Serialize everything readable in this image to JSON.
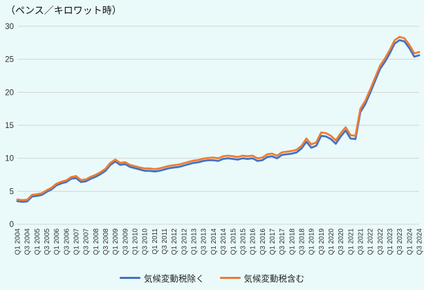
{
  "title": "（ペンス／キロワット時）",
  "colors": {
    "background": "#EAFAFA",
    "gridline": "#D4D4D4",
    "tick_text": "#303030",
    "series_excl": "#4472C4",
    "series_incl": "#ED7D31"
  },
  "legend": {
    "items": [
      {
        "label": "気候変動税除く",
        "color": "#4472C4"
      },
      {
        "label": "気候変動税含む",
        "color": "#ED7D31"
      }
    ]
  },
  "chart_data": {
    "type": "line",
    "title": "（ペンス／キロワット時）",
    "xlabel": "",
    "ylabel": "",
    "ylim": [
      0,
      30
    ],
    "yticks": [
      0,
      5,
      10,
      15,
      20,
      25,
      30
    ],
    "grid": true,
    "legend_position": "bottom",
    "x_tick_every": 2,
    "x": [
      "Q1 2004",
      "Q2 2004",
      "Q3 2004",
      "Q4 2004",
      "Q1 2005",
      "Q2 2005",
      "Q3 2005",
      "Q4 2005",
      "Q1 2006",
      "Q2 2006",
      "Q3 2006",
      "Q4 2006",
      "Q1 2007",
      "Q2 2007",
      "Q3 2007",
      "Q4 2007",
      "Q1 2008",
      "Q2 2008",
      "Q3 2008",
      "Q4 2008",
      "Q1 2009",
      "Q2 2009",
      "Q3 2009",
      "Q4 2009",
      "Q1 2010",
      "Q2 2010",
      "Q3 2010",
      "Q4 2010",
      "Q1 2011",
      "Q2 2011",
      "Q3 2011",
      "Q4 2011",
      "Q1 2012",
      "Q2 2012",
      "Q3 2012",
      "Q4 2012",
      "Q1 2013",
      "Q2 2013",
      "Q3 2013",
      "Q4 2013",
      "Q1 2014",
      "Q2 2014",
      "Q3 2014",
      "Q4 2014",
      "Q1 2015",
      "Q2 2015",
      "Q3 2015",
      "Q4 2015",
      "Q1 2016",
      "Q2 2016",
      "Q3 2016",
      "Q4 2016",
      "Q1 2017",
      "Q2 2017",
      "Q3 2017",
      "Q4 2017",
      "Q1 2018",
      "Q2 2018",
      "Q3 2018",
      "Q4 2018",
      "Q1 2019",
      "Q2 2019",
      "Q3 2019",
      "Q4 2019",
      "Q1 2020",
      "Q2 2020",
      "Q3 2020",
      "Q4 2020",
      "Q1 2021",
      "Q2 2021",
      "Q3 2021",
      "Q4 2021",
      "Q1 2022",
      "Q2 2022",
      "Q3 2022",
      "Q4 2022",
      "Q1 2023",
      "Q2 2023",
      "Q3 2023",
      "Q4 2023",
      "Q1 2024",
      "Q2 2024",
      "Q3 2024"
    ],
    "series": [
      {
        "name": "気候変動税除く",
        "color": "#4472C4",
        "values": [
          3.5,
          3.4,
          3.45,
          4.2,
          4.3,
          4.45,
          4.9,
          5.3,
          5.9,
          6.2,
          6.4,
          6.9,
          7.0,
          6.4,
          6.5,
          6.9,
          7.2,
          7.6,
          8.1,
          9.0,
          9.5,
          9.0,
          9.1,
          8.7,
          8.5,
          8.3,
          8.1,
          8.1,
          8.0,
          8.1,
          8.3,
          8.5,
          8.6,
          8.7,
          8.9,
          9.1,
          9.3,
          9.4,
          9.6,
          9.7,
          9.7,
          9.6,
          9.9,
          10.0,
          9.9,
          9.8,
          10.0,
          9.9,
          10.0,
          9.6,
          9.7,
          10.2,
          10.3,
          10.0,
          10.5,
          10.6,
          10.7,
          10.9,
          11.5,
          12.5,
          11.6,
          11.9,
          13.4,
          13.3,
          12.9,
          12.2,
          13.3,
          14.2,
          13.0,
          12.9,
          17.0,
          18.2,
          19.9,
          21.7,
          23.5,
          24.6,
          25.9,
          27.4,
          27.9,
          27.7,
          26.7,
          25.4,
          25.6
        ]
      },
      {
        "name": "気候変動税含む",
        "color": "#ED7D31",
        "values": [
          3.75,
          3.65,
          3.7,
          4.45,
          4.55,
          4.7,
          5.15,
          5.55,
          6.15,
          6.45,
          6.65,
          7.15,
          7.3,
          6.7,
          6.8,
          7.2,
          7.5,
          7.9,
          8.4,
          9.3,
          9.8,
          9.3,
          9.4,
          9.0,
          8.8,
          8.6,
          8.45,
          8.45,
          8.35,
          8.45,
          8.65,
          8.85,
          8.95,
          9.05,
          9.25,
          9.45,
          9.65,
          9.75,
          9.95,
          10.05,
          10.1,
          10.0,
          10.3,
          10.4,
          10.3,
          10.2,
          10.4,
          10.3,
          10.4,
          10.0,
          10.1,
          10.6,
          10.7,
          10.4,
          10.9,
          11.0,
          11.1,
          11.3,
          11.9,
          13.0,
          12.1,
          12.4,
          13.9,
          13.8,
          13.4,
          12.7,
          13.8,
          14.7,
          13.5,
          13.4,
          17.5,
          18.7,
          20.4,
          22.2,
          24.0,
          25.1,
          26.4,
          27.9,
          28.4,
          28.2,
          27.2,
          25.9,
          26.1
        ]
      }
    ]
  }
}
